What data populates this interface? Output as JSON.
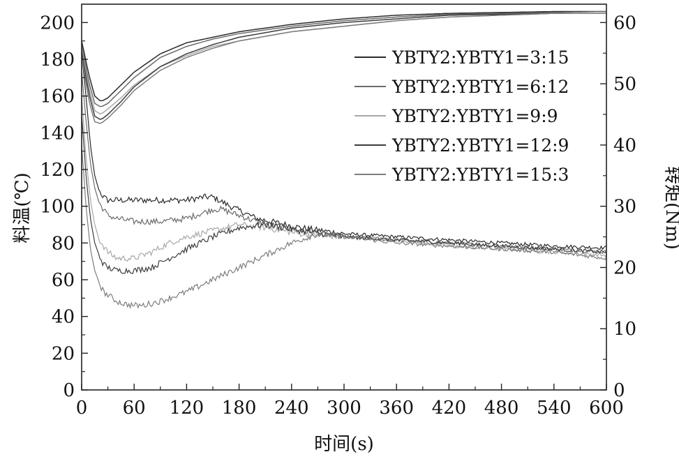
{
  "chart_data": {
    "type": "line",
    "xlabel": "时间(s)",
    "ylabel_left": "料温(℃)",
    "ylabel_right": "转矩(Nm)",
    "xlim": [
      0,
      600
    ],
    "ylim_left": [
      0,
      210
    ],
    "ylim_right": [
      0,
      63
    ],
    "x_ticks": [
      0,
      60,
      120,
      180,
      240,
      300,
      360,
      420,
      480,
      540,
      600
    ],
    "y_left_ticks": [
      0,
      20,
      40,
      60,
      80,
      100,
      120,
      140,
      160,
      180,
      200
    ],
    "y_right_ticks": [
      0,
      10,
      20,
      30,
      40,
      50,
      60
    ],
    "grid": false,
    "legend_position": "top-right",
    "legend": [
      "YBTY2:YBTY1=3:15",
      "YBTY2:YBTY1=6:12",
      "YBTY2:YBTY1=9:9",
      "YBTY2:YBTY1=12:9",
      "YBTY2:YBTY1=15:3"
    ],
    "series": [
      {
        "color": "#2a2a2a",
        "temperature": {
          "x": [
            0,
            8,
            15,
            22,
            30,
            45,
            60,
            90,
            120,
            150,
            180,
            240,
            300,
            360,
            420,
            480,
            540,
            600
          ],
          "y": [
            190,
            172,
            160,
            157,
            159,
            166,
            173,
            183,
            189,
            192,
            195,
            199,
            202,
            204,
            205,
            205.5,
            206,
            206
          ]
        },
        "torque": {
          "x": [
            0,
            5,
            10,
            15,
            20,
            25,
            30,
            45,
            60,
            90,
            120,
            140,
            150,
            170,
            200,
            250,
            300,
            360,
            420,
            480,
            540,
            600
          ],
          "y": [
            55,
            48,
            40,
            35,
            32.5,
            31.5,
            31,
            31,
            31,
            31,
            31,
            31.5,
            31.5,
            30,
            28,
            26.5,
            25.5,
            25,
            24.5,
            24,
            23.5,
            23.2
          ]
        }
      },
      {
        "color": "#6b6b6b",
        "temperature": {
          "x": [
            0,
            8,
            15,
            22,
            30,
            45,
            60,
            90,
            120,
            150,
            180,
            240,
            300,
            360,
            420,
            480,
            540,
            600
          ],
          "y": [
            188,
            168,
            156,
            154,
            156,
            163,
            170,
            181,
            187,
            191,
            194,
            198,
            201,
            203,
            204.5,
            205,
            205.5,
            206
          ]
        },
        "torque": {
          "x": [
            0,
            5,
            10,
            15,
            20,
            30,
            40,
            60,
            90,
            120,
            150,
            160,
            180,
            200,
            250,
            300,
            360,
            420,
            480,
            540,
            600
          ],
          "y": [
            52,
            44,
            37,
            33,
            30.5,
            28.5,
            28,
            27.5,
            27.5,
            28,
            29.5,
            29.5,
            28.5,
            27.5,
            26,
            25,
            24.5,
            24,
            23.5,
            23,
            22.5
          ]
        }
      },
      {
        "color": "#a8a8a8",
        "temperature": {
          "x": [
            0,
            8,
            15,
            22,
            30,
            45,
            60,
            90,
            120,
            150,
            180,
            240,
            300,
            360,
            420,
            480,
            540,
            600
          ],
          "y": [
            186,
            165,
            152,
            150,
            153,
            159,
            166,
            176,
            182,
            187,
            190,
            195,
            198,
            201,
            203,
            204,
            205,
            205
          ]
        },
        "torque": {
          "x": [
            0,
            5,
            10,
            15,
            20,
            30,
            40,
            60,
            80,
            100,
            120,
            150,
            180,
            210,
            250,
            300,
            360,
            420,
            480,
            540,
            600
          ],
          "y": [
            48,
            38,
            31,
            27,
            24.5,
            22.5,
            21.5,
            21.5,
            22.5,
            24,
            25,
            26,
            27,
            26.5,
            25.5,
            25,
            24.5,
            23.5,
            23,
            22.5,
            22
          ]
        }
      },
      {
        "color": "#3c3c3c",
        "temperature": {
          "x": [
            0,
            8,
            15,
            22,
            30,
            45,
            60,
            90,
            120,
            150,
            180,
            240,
            300,
            360,
            420,
            480,
            540,
            600
          ],
          "y": [
            184,
            162,
            149,
            147,
            150,
            157,
            165,
            176,
            183,
            188,
            192,
            197,
            200,
            202,
            204,
            204.5,
            205,
            205
          ]
        },
        "torque": {
          "x": [
            0,
            5,
            10,
            15,
            20,
            25,
            30,
            40,
            60,
            80,
            100,
            120,
            150,
            180,
            210,
            250,
            300,
            360,
            420,
            480,
            540,
            600
          ],
          "y": [
            45,
            35,
            28,
            24,
            22,
            20.5,
            20,
            19.5,
            19.5,
            20,
            21.5,
            23,
            25,
            26.5,
            27,
            26,
            25,
            24.5,
            24,
            23.5,
            23,
            22.5
          ]
        }
      },
      {
        "color": "#7d7d7d",
        "temperature": {
          "x": [
            0,
            8,
            15,
            22,
            30,
            45,
            60,
            90,
            120,
            150,
            180,
            240,
            300,
            360,
            420,
            480,
            540,
            600
          ],
          "y": [
            182,
            158,
            146,
            145,
            148,
            155,
            163,
            174,
            181,
            186,
            190,
            195,
            198,
            201,
            203,
            204,
            205,
            205
          ]
        },
        "torque": {
          "x": [
            0,
            5,
            10,
            15,
            20,
            25,
            30,
            40,
            50,
            60,
            70,
            90,
            120,
            150,
            180,
            210,
            240,
            270,
            300,
            360,
            420,
            480,
            540,
            600
          ],
          "y": [
            40,
            30,
            23,
            19.5,
            17.5,
            16,
            15.5,
            14.5,
            14,
            13.8,
            13.8,
            14.5,
            16,
            18,
            20,
            22,
            24,
            25.5,
            25,
            24,
            23.5,
            23,
            22.5,
            21.5
          ]
        }
      }
    ]
  }
}
